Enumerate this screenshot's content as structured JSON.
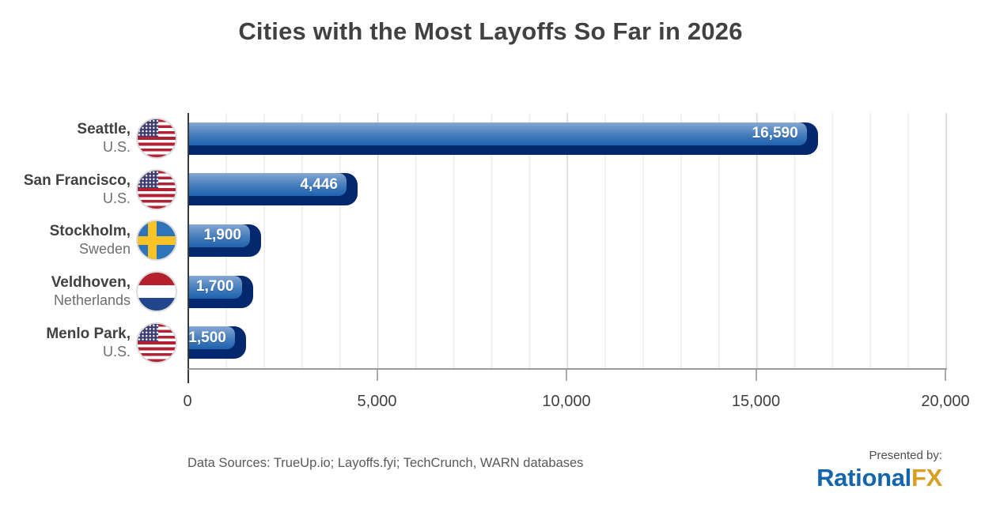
{
  "title": "Cities with the Most Layoffs So Far in 2026",
  "chart_data": {
    "type": "bar",
    "orientation": "horizontal",
    "title": "Cities with the Most Layoffs So Far in 2026",
    "categories": [
      "Seattle, U.S.",
      "San Francisco, U.S.",
      "Stockholm, Sweden",
      "Veldhoven, Netherlands",
      "Menlo Park, U.S."
    ],
    "values": [
      16590,
      4446,
      1900,
      1700,
      1500
    ],
    "rows": [
      {
        "city": "Seattle,",
        "country": "U.S.",
        "flag": "us",
        "value": 16590,
        "label": "16,590"
      },
      {
        "city": "San Francisco,",
        "country": "U.S.",
        "flag": "us",
        "value": 4446,
        "label": "4,446"
      },
      {
        "city": "Stockholm,",
        "country": "Sweden",
        "flag": "se",
        "value": 1900,
        "label": "1,900"
      },
      {
        "city": "Veldhoven,",
        "country": "Netherlands",
        "flag": "nl",
        "value": 1700,
        "label": "1,700"
      },
      {
        "city": "Menlo Park,",
        "country": "U.S.",
        "flag": "us",
        "value": 1500,
        "label": "1,500"
      }
    ],
    "xlim": [
      0,
      20000
    ],
    "x_ticks": [
      "0",
      "5,000",
      "10,000",
      "15,000",
      "20,000"
    ],
    "grid": {
      "vertical_minor_step": 1000,
      "vertical_major_step": 5000,
      "horizontal": false
    },
    "legend": "none",
    "colors": {
      "bar_gradient_top": "#86a8d5",
      "bar_gradient_bottom": "#1f62ae",
      "bar_shadow": "#04286e",
      "value_label": "#ffffff",
      "axis_line": "#3a3a3a"
    }
  },
  "footer": {
    "data_sources": "Data Sources: TrueUp.io; Layoffs.fyi; TechCrunch, WARN databases",
    "presented_by": "Presented by:",
    "brand": {
      "left": "Rational",
      "right": "FX",
      "left_color": "#1565ad",
      "right_color": "#d7a023"
    }
  }
}
